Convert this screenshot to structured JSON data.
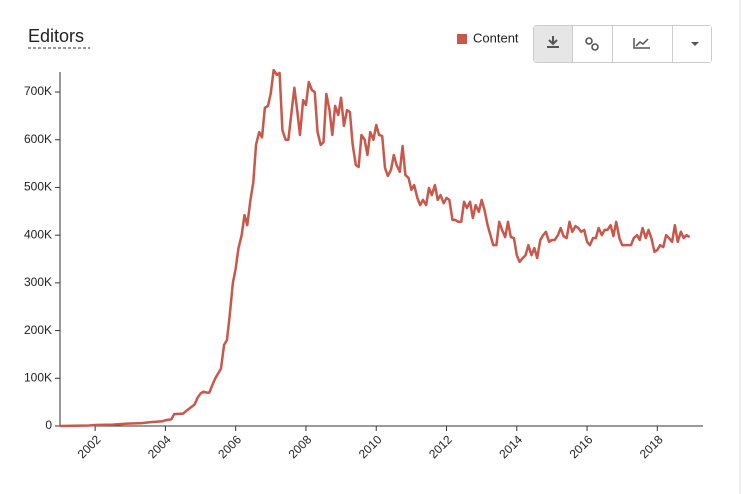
{
  "chart_data": {
    "type": "line",
    "title": "Editors",
    "x": [
      2001.0,
      2001.83,
      2002.0,
      2002.5,
      2002.92,
      2003.33,
      2003.58,
      2003.92,
      2004.0,
      2004.17,
      2004.25,
      2004.5,
      2004.67,
      2004.83,
      2004.92,
      2005.0,
      2005.08,
      2005.17,
      2005.25,
      2005.33,
      2005.42,
      2005.5,
      2005.58,
      2005.67,
      2005.75,
      2005.83,
      2005.92,
      2006.0,
      2006.08,
      2006.17,
      2006.25,
      2006.33,
      2006.42,
      2006.5,
      2006.58,
      2006.67,
      2006.75,
      2006.83,
      2006.92,
      2007.0,
      2007.08,
      2007.17,
      2007.25,
      2007.33,
      2007.42,
      2007.5,
      2007.58,
      2007.67,
      2007.75,
      2007.83,
      2007.92,
      2008.0,
      2008.08,
      2008.17,
      2008.25,
      2008.33,
      2008.42,
      2008.5,
      2008.58,
      2008.67,
      2008.75,
      2008.83,
      2008.92,
      2009.0,
      2009.08,
      2009.17,
      2009.25,
      2009.33,
      2009.42,
      2009.5,
      2009.58,
      2009.67,
      2009.75,
      2009.83,
      2009.92,
      2010.0,
      2010.08,
      2010.17,
      2010.25,
      2010.33,
      2010.42,
      2010.5,
      2010.58,
      2010.67,
      2010.75,
      2010.83,
      2010.92,
      2011.0,
      2011.08,
      2011.17,
      2011.25,
      2011.33,
      2011.42,
      2011.5,
      2011.58,
      2011.67,
      2011.75,
      2011.83,
      2011.92,
      2012.0,
      2012.08,
      2012.17,
      2012.25,
      2012.33,
      2012.42,
      2012.5,
      2012.58,
      2012.67,
      2012.75,
      2012.83,
      2012.92,
      2013.0,
      2013.08,
      2013.17,
      2013.25,
      2013.33,
      2013.42,
      2013.5,
      2013.58,
      2013.67,
      2013.75,
      2013.83,
      2013.92,
      2014.0,
      2014.08,
      2014.17,
      2014.25,
      2014.33,
      2014.42,
      2014.5,
      2014.58,
      2014.67,
      2014.75,
      2014.83,
      2014.92,
      2015.0,
      2015.08,
      2015.17,
      2015.25,
      2015.33,
      2015.42,
      2015.5,
      2015.58,
      2015.67,
      2015.75,
      2015.83,
      2015.92,
      2016.0,
      2016.08,
      2016.17,
      2016.25,
      2016.33,
      2016.42,
      2016.5,
      2016.58,
      2016.67,
      2016.75,
      2016.83,
      2016.92,
      2017.0,
      2017.08,
      2017.17,
      2017.25,
      2017.33,
      2017.42,
      2017.5,
      2017.58,
      2017.67,
      2017.75,
      2017.83,
      2017.92,
      2018.0,
      2018.08,
      2018.17,
      2018.25,
      2018.33,
      2018.42,
      2018.5,
      2018.58,
      2018.67,
      2018.75,
      2018.83,
      2018.92
    ],
    "series": [
      {
        "name": "Content",
        "color": "#c9574a",
        "values": [
          0,
          1000,
          2000,
          3000,
          5000,
          6000,
          8000,
          10000,
          12000,
          14000,
          25000,
          26000,
          36000,
          45000,
          60000,
          68000,
          72000,
          70000,
          70000,
          85000,
          100000,
          110000,
          120000,
          170000,
          180000,
          232000,
          300000,
          330000,
          373000,
          400000,
          442000,
          421000,
          474000,
          510000,
          590000,
          616000,
          605000,
          667000,
          671000,
          698000,
          746000,
          736000,
          740000,
          620000,
          600000,
          600000,
          652000,
          709000,
          662000,
          610000,
          683000,
          673000,
          721000,
          704000,
          700000,
          616000,
          589000,
          595000,
          696000,
          662000,
          610000,
          671000,
          652000,
          688000,
          629000,
          662000,
          658000,
          589000,
          547000,
          543000,
          610000,
          600000,
          568000,
          616000,
          600000,
          631000,
          610000,
          608000,
          541000,
          524000,
          537000,
          568000,
          547000,
          533000,
          587000,
          526000,
          520000,
          495000,
          505000,
          478000,
          463000,
          474000,
          463000,
          499000,
          484000,
          505000,
          474000,
          484000,
          467000,
          478000,
          474000,
          432000,
          432000,
          428000,
          428000,
          470000,
          457000,
          470000,
          436000,
          463000,
          449000,
          474000,
          453000,
          421000,
          400000,
          379000,
          379000,
          428000,
          411000,
          396000,
          428000,
          396000,
          394000,
          358000,
          344000,
          352000,
          358000,
          379000,
          358000,
          373000,
          352000,
          390000,
          400000,
          407000,
          386000,
          390000,
          390000,
          400000,
          415000,
          398000,
          394000,
          428000,
          407000,
          419000,
          415000,
          407000,
          411000,
          386000,
          379000,
          394000,
          394000,
          415000,
          400000,
          411000,
          411000,
          421000,
          398000,
          428000,
          394000,
          379000,
          379000,
          379000,
          379000,
          394000,
          400000,
          390000,
          415000,
          394000,
          411000,
          394000,
          365000,
          369000,
          379000,
          375000,
          400000,
          394000,
          386000,
          421000,
          386000,
          407000,
          394000,
          400000,
          396000
        ]
      }
    ],
    "xlim": [
      2001,
      2019.3
    ],
    "xticks": [
      2002,
      2004,
      2006,
      2008,
      2010,
      2012,
      2014,
      2016,
      2018
    ],
    "ylim": [
      0,
      742000
    ],
    "yticks": [
      0,
      {
        "value": 100000,
        "label": "100K"
      },
      {
        "value": 200000,
        "label": "200K"
      },
      {
        "value": 300000,
        "label": "300K"
      },
      {
        "value": 400000,
        "label": "400K"
      },
      {
        "value": 500000,
        "label": "500K"
      },
      {
        "value": 600000,
        "label": "600K"
      },
      {
        "value": 700000,
        "label": "700K"
      }
    ],
    "grid": false
  }
}
